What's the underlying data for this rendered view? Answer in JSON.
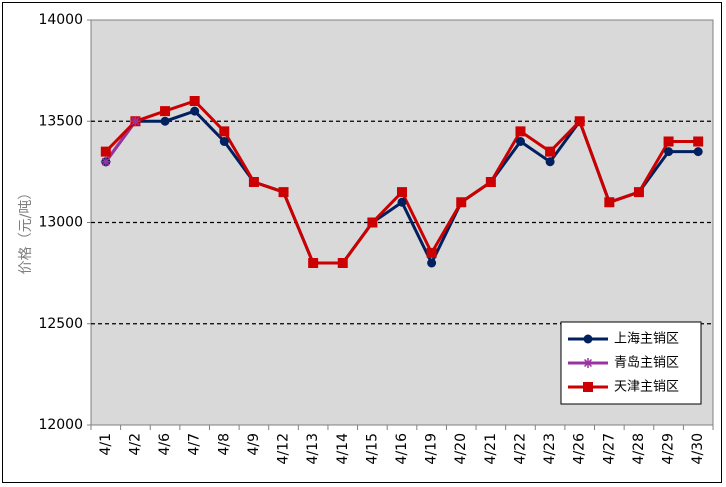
{
  "chart_data": {
    "type": "line",
    "title": "",
    "xlabel": "",
    "ylabel": "价格（元/吨）",
    "ylim": [
      12000,
      14000
    ],
    "yticks": [
      12000,
      12500,
      13000,
      13500,
      14000
    ],
    "grid": "dashed horizontal at 12500, 13000, 13500",
    "legend_position": "bottom-right",
    "categories": [
      "4/1",
      "4/2",
      "4/6",
      "4/7",
      "4/8",
      "4/9",
      "4/12",
      "4/13",
      "4/14",
      "4/15",
      "4/16",
      "4/19",
      "4/20",
      "4/21",
      "4/22",
      "4/23",
      "4/26",
      "4/27",
      "4/28",
      "4/29",
      "4/30"
    ],
    "series": [
      {
        "name": "上海主销区",
        "color": "#002060",
        "marker": "circle",
        "values": [
          13300,
          13500,
          13500,
          13550,
          13400,
          13200,
          13150,
          12800,
          12800,
          13000,
          13100,
          12800,
          13100,
          13200,
          13400,
          13300,
          13500,
          13100,
          13150,
          13350,
          13350
        ]
      },
      {
        "name": "青岛主销区",
        "color": "#9933a0",
        "marker": "star",
        "values": [
          13300,
          13500,
          null,
          null,
          null,
          null,
          null,
          null,
          null,
          null,
          null,
          null,
          null,
          null,
          null,
          null,
          null,
          null,
          null,
          null,
          null
        ]
      },
      {
        "name": "天津主销区",
        "color": "#cc0000",
        "marker": "square",
        "values": [
          13350,
          13500,
          13550,
          13600,
          13450,
          13200,
          13150,
          12800,
          12800,
          13000,
          13150,
          12850,
          13100,
          13200,
          13450,
          13350,
          13500,
          13100,
          13150,
          13400,
          13400
        ]
      }
    ]
  }
}
